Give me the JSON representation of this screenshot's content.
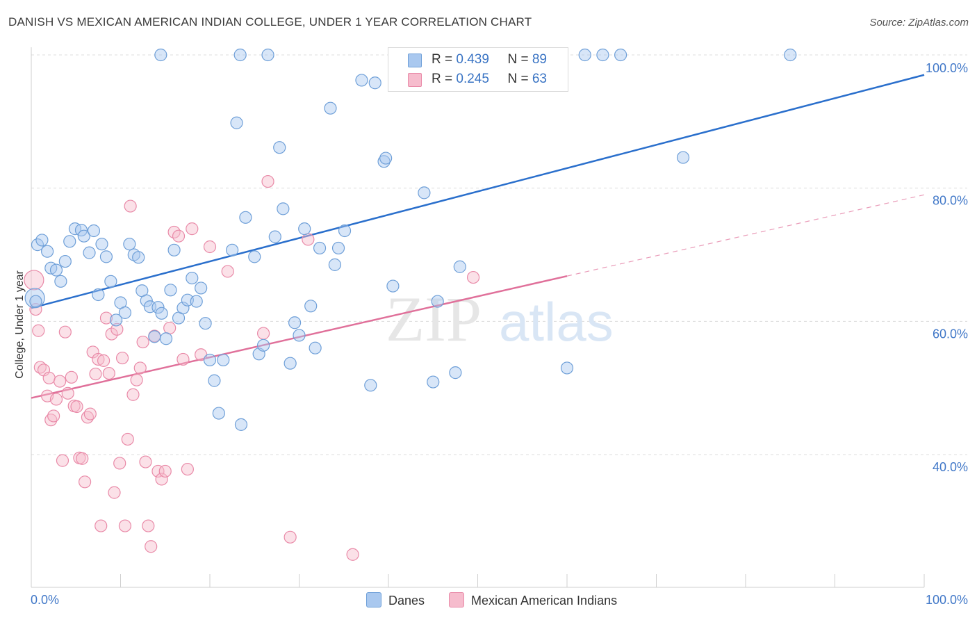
{
  "header": {
    "title": "DANISH VS MEXICAN AMERICAN INDIAN COLLEGE, UNDER 1 YEAR CORRELATION CHART",
    "source": "Source: ZipAtlas.com"
  },
  "legend": {
    "danes": {
      "r_label": "R = ",
      "r_value": "0.439",
      "n_label": "N = ",
      "n_value": "89"
    },
    "mexican": {
      "r_label": "R = ",
      "r_value": "0.245",
      "n_label": "N = ",
      "n_value": "63"
    }
  },
  "bottom_legend": {
    "danes": "Danes",
    "mexican": "Mexican American Indians"
  },
  "watermark": {
    "zip": "ZIP",
    "atlas": "atlas"
  },
  "colors": {
    "danes_fill": "#a9c8ef",
    "danes_stroke": "#6e9fd8",
    "danes_line": "#2a6fcc",
    "mex_fill": "#f6bccd",
    "mex_stroke": "#e98aa8",
    "mex_line": "#e0709a",
    "axis_text": "#4178c8",
    "grid": "#dcdcdc"
  },
  "chart_data": {
    "type": "scatter",
    "title": "DANISH VS MEXICAN AMERICAN INDIAN COLLEGE, UNDER 1 YEAR CORRELATION CHART",
    "xlabel": "",
    "ylabel": "College, Under 1 year",
    "xlim": [
      0,
      100
    ],
    "ylim": [
      20,
      102
    ],
    "x_tick_labels": [
      "0.0%",
      "100.0%"
    ],
    "y_tick_values": [
      40,
      60,
      80,
      100
    ],
    "y_tick_labels": [
      "40.0%",
      "60.0%",
      "80.0%",
      "100.0%"
    ],
    "grid": true,
    "legend_position": "top-center",
    "series": [
      {
        "name": "Danes",
        "R": 0.439,
        "N": 89,
        "trend": {
          "x": [
            0,
            100
          ],
          "y": [
            62.0,
            97.0
          ],
          "style": "solid"
        },
        "points": [
          [
            0.4,
            63.5
          ],
          [
            0.5,
            63
          ],
          [
            0.7,
            71.5
          ],
          [
            1.2,
            72.2
          ],
          [
            1.8,
            70.5
          ],
          [
            2.2,
            68
          ],
          [
            2.8,
            67.7
          ],
          [
            3.3,
            66
          ],
          [
            3.8,
            69
          ],
          [
            4.3,
            72
          ],
          [
            4.9,
            73.9
          ],
          [
            5.6,
            73.7
          ],
          [
            5.9,
            72.8
          ],
          [
            6.5,
            70.3
          ],
          [
            7,
            73.6
          ],
          [
            7.5,
            64
          ],
          [
            7.9,
            71.6
          ],
          [
            8.4,
            69.7
          ],
          [
            8.9,
            66
          ],
          [
            9.5,
            60.2
          ],
          [
            10,
            62.8
          ],
          [
            10.5,
            61.3
          ],
          [
            11,
            71.6
          ],
          [
            11.5,
            70
          ],
          [
            12,
            69.6
          ],
          [
            12.4,
            64.6
          ],
          [
            12.9,
            63.1
          ],
          [
            13.3,
            62.2
          ],
          [
            13.8,
            57.7
          ],
          [
            14.2,
            62.1
          ],
          [
            14.6,
            61.2
          ],
          [
            15.1,
            57.4
          ],
          [
            15.6,
            64.7
          ],
          [
            16,
            70.7
          ],
          [
            16.5,
            60.5
          ],
          [
            17,
            62
          ],
          [
            17.5,
            63.2
          ],
          [
            18,
            66.5
          ],
          [
            18.5,
            63
          ],
          [
            19,
            65
          ],
          [
            19.5,
            59.7
          ],
          [
            20,
            54.2
          ],
          [
            20.5,
            51.1
          ],
          [
            21,
            46.2
          ],
          [
            21.5,
            54.2
          ],
          [
            22.5,
            70.7
          ],
          [
            23,
            89.8
          ],
          [
            23.5,
            44.5
          ],
          [
            24,
            75.6
          ],
          [
            25,
            69.7
          ],
          [
            25.5,
            55.1
          ],
          [
            26,
            56.4
          ],
          [
            26.5,
            100
          ],
          [
            27.3,
            72.7
          ],
          [
            27.8,
            86.1
          ],
          [
            28.2,
            76.9
          ],
          [
            29,
            53.7
          ],
          [
            29.5,
            59.8
          ],
          [
            30,
            57.9
          ],
          [
            30.6,
            73.9
          ],
          [
            31.3,
            62.3
          ],
          [
            31.8,
            56
          ],
          [
            32.3,
            71
          ],
          [
            33.5,
            92
          ],
          [
            34,
            68.5
          ],
          [
            34.4,
            71
          ],
          [
            35.1,
            73.6
          ],
          [
            37,
            96.2
          ],
          [
            38,
            50.4
          ],
          [
            38.5,
            95.8
          ],
          [
            39.5,
            84
          ],
          [
            39.7,
            84.5
          ],
          [
            40.5,
            65.3
          ],
          [
            42,
            100
          ],
          [
            44,
            79.3
          ],
          [
            45,
            50.9
          ],
          [
            45.5,
            63
          ],
          [
            47.5,
            52.3
          ],
          [
            48,
            68.2
          ],
          [
            53,
            100
          ],
          [
            55,
            100
          ],
          [
            60,
            53
          ],
          [
            62,
            100
          ],
          [
            64,
            100
          ],
          [
            66,
            100
          ],
          [
            73,
            84.6
          ],
          [
            85,
            100
          ],
          [
            23.4,
            100
          ],
          [
            14.5,
            100
          ]
        ]
      },
      {
        "name": "Mexican American Indians",
        "R": 0.245,
        "N": 63,
        "trend": {
          "x": [
            0,
            60
          ],
          "y": [
            48.5,
            66.8
          ],
          "style": "solid",
          "extension": {
            "x": [
              60,
              100
            ],
            "y": [
              66.8,
              79.0
            ],
            "style": "dashed"
          }
        },
        "points": [
          [
            0.3,
            66.2
          ],
          [
            0.5,
            61.8
          ],
          [
            0.8,
            58.6
          ],
          [
            1,
            53.1
          ],
          [
            1.4,
            52.7
          ],
          [
            1.8,
            48.8
          ],
          [
            2,
            51.5
          ],
          [
            2.2,
            45.2
          ],
          [
            2.5,
            45.8
          ],
          [
            2.8,
            48.3
          ],
          [
            3.2,
            51
          ],
          [
            3.5,
            39.1
          ],
          [
            3.8,
            58.4
          ],
          [
            4.1,
            49.2
          ],
          [
            4.5,
            51.6
          ],
          [
            4.8,
            47.3
          ],
          [
            5.1,
            47.2
          ],
          [
            5.4,
            39.5
          ],
          [
            5.7,
            39.4
          ],
          [
            6,
            35.9
          ],
          [
            6.3,
            45.6
          ],
          [
            6.6,
            46.1
          ],
          [
            6.9,
            55.4
          ],
          [
            7.2,
            52.1
          ],
          [
            7.5,
            54.3
          ],
          [
            7.8,
            29.3
          ],
          [
            8.1,
            54.1
          ],
          [
            8.4,
            60.5
          ],
          [
            8.7,
            52.2
          ],
          [
            9,
            58.1
          ],
          [
            9.3,
            34.3
          ],
          [
            9.6,
            58.8
          ],
          [
            9.9,
            38.7
          ],
          [
            10.2,
            54.5
          ],
          [
            10.5,
            29.3
          ],
          [
            10.8,
            42.3
          ],
          [
            11.1,
            77.3
          ],
          [
            11.4,
            49
          ],
          [
            11.8,
            51.2
          ],
          [
            12.2,
            53
          ],
          [
            12.5,
            56.9
          ],
          [
            12.8,
            38.9
          ],
          [
            13.1,
            29.3
          ],
          [
            13.4,
            26.2
          ],
          [
            13.8,
            57.8
          ],
          [
            14.2,
            37.5
          ],
          [
            14.6,
            36.3
          ],
          [
            15,
            37.5
          ],
          [
            15.5,
            59
          ],
          [
            16,
            73.4
          ],
          [
            16.5,
            72.8
          ],
          [
            17,
            54.3
          ],
          [
            17.5,
            37.8
          ],
          [
            18,
            73.9
          ],
          [
            19,
            55
          ],
          [
            20,
            71.2
          ],
          [
            22,
            67.5
          ],
          [
            26,
            58.2
          ],
          [
            26.5,
            81
          ],
          [
            29,
            27.6
          ],
          [
            31,
            72.3
          ],
          [
            36,
            25
          ],
          [
            49.5,
            66.6
          ]
        ]
      }
    ]
  }
}
